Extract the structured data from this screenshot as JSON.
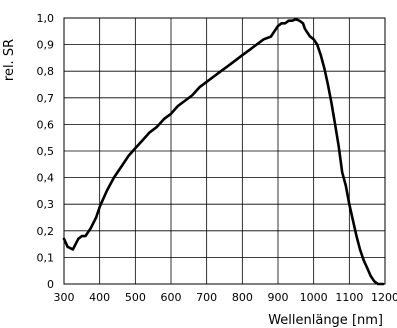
{
  "chart_data": {
    "type": "line",
    "title": "",
    "xlabel": "Wellenlänge [nm]",
    "ylabel": "rel. SR",
    "xlim": [
      300,
      1200
    ],
    "ylim": [
      0,
      1.0
    ],
    "grid": true,
    "x_ticks": [
      "300",
      "400",
      "500",
      "600",
      "700",
      "800",
      "900",
      "1000",
      "1100",
      "1200"
    ],
    "y_ticks": [
      "0",
      "0,1",
      "0,2",
      "0,3",
      "0,4",
      "0,5",
      "0,6",
      "0,7",
      "0,8",
      "0,9",
      "1,0"
    ],
    "series": [
      {
        "x": [
          300,
          310,
          325,
          340,
          350,
          360,
          375,
          390,
          400,
          420,
          440,
          460,
          480,
          500,
          520,
          540,
          560,
          580,
          600,
          620,
          640,
          660,
          680,
          700,
          720,
          740,
          760,
          780,
          800,
          820,
          840,
          860,
          880,
          890,
          900,
          910,
          920,
          930,
          940,
          950,
          960,
          970,
          975,
          980,
          990,
          1000,
          1010,
          1020,
          1030,
          1040,
          1050,
          1060,
          1070,
          1080,
          1090,
          1100,
          1110,
          1120,
          1130,
          1140,
          1150,
          1160,
          1170,
          1180,
          1190,
          1195
        ],
        "y": [
          0.17,
          0.14,
          0.13,
          0.17,
          0.18,
          0.18,
          0.21,
          0.25,
          0.29,
          0.35,
          0.4,
          0.44,
          0.48,
          0.51,
          0.54,
          0.57,
          0.59,
          0.62,
          0.64,
          0.67,
          0.69,
          0.71,
          0.74,
          0.76,
          0.78,
          0.8,
          0.82,
          0.84,
          0.86,
          0.88,
          0.9,
          0.92,
          0.93,
          0.95,
          0.97,
          0.98,
          0.98,
          0.99,
          0.99,
          0.995,
          0.99,
          0.98,
          0.96,
          0.95,
          0.93,
          0.92,
          0.9,
          0.86,
          0.81,
          0.75,
          0.68,
          0.6,
          0.52,
          0.42,
          0.37,
          0.3,
          0.24,
          0.18,
          0.13,
          0.09,
          0.06,
          0.03,
          0.01,
          0.0,
          0.0,
          0.0
        ]
      }
    ]
  }
}
